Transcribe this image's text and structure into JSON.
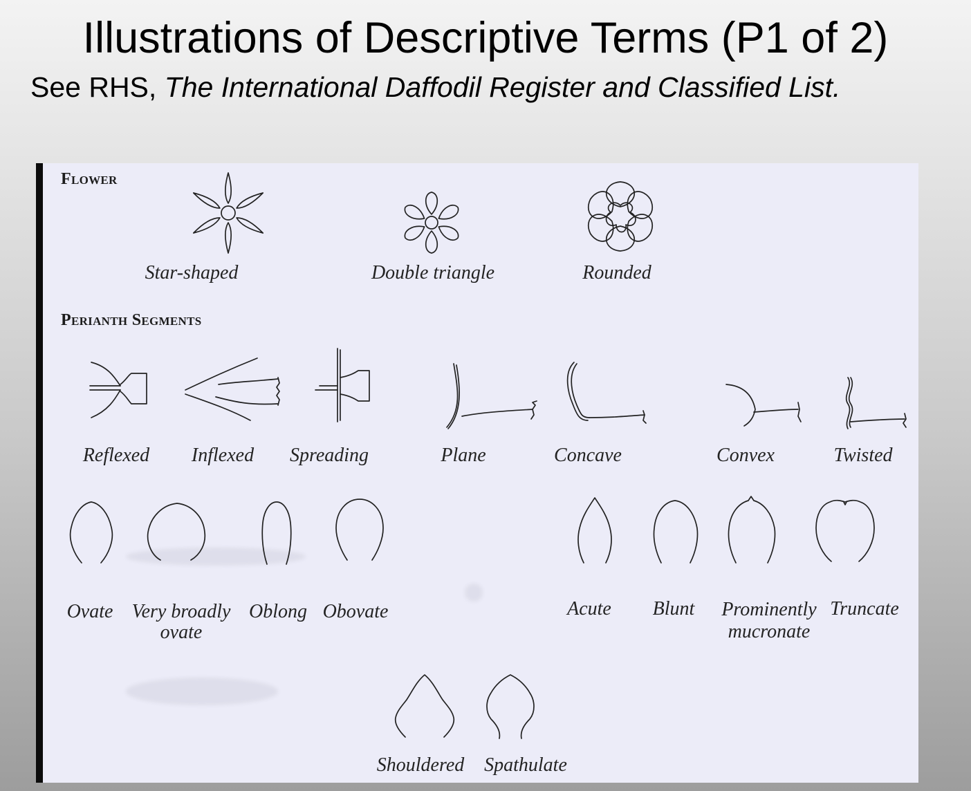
{
  "slide": {
    "title": "Illustrations of Descriptive Terms (P1 of 2)",
    "subtitle_prefix": "See RHS, ",
    "subtitle_reference": "The International Daffodil Register and Classified List."
  },
  "plate": {
    "sections": {
      "flower": "Flower",
      "perianth_segments": "Perianth Segments"
    },
    "flower_shapes": [
      "Star-shaped",
      "Double triangle",
      "Rounded"
    ],
    "perianth_attitude": [
      "Reflexed",
      "Inflexed",
      "Spreading",
      "Plane",
      "Concave",
      "Convex",
      "Twisted"
    ],
    "perianth_shape": [
      "Ovate",
      "Very broadly ovate",
      "Oblong",
      "Obovate"
    ],
    "perianth_tip": [
      "Acute",
      "Blunt",
      "Prominently mucronate",
      "Truncate"
    ],
    "perianth_base": [
      "Shouldered",
      "Spathulate"
    ]
  },
  "icons": {
    "flower_shapes": [
      "star-flower-icon",
      "double-triangle-flower-icon",
      "rounded-flower-icon"
    ],
    "perianth_attitude": [
      "reflexed-segment-icon",
      "inflexed-segment-icon",
      "spreading-segment-icon",
      "plane-segment-icon",
      "concave-segment-icon",
      "convex-segment-icon",
      "twisted-segment-icon"
    ],
    "perianth_shape": [
      "ovate-outline-icon",
      "very-broadly-ovate-outline-icon",
      "oblong-outline-icon",
      "obovate-outline-icon"
    ],
    "perianth_tip": [
      "acute-outline-icon",
      "blunt-outline-icon",
      "prominently-mucronate-outline-icon",
      "truncate-outline-icon"
    ],
    "perianth_base": [
      "shouldered-outline-icon",
      "spathulate-outline-icon"
    ]
  }
}
